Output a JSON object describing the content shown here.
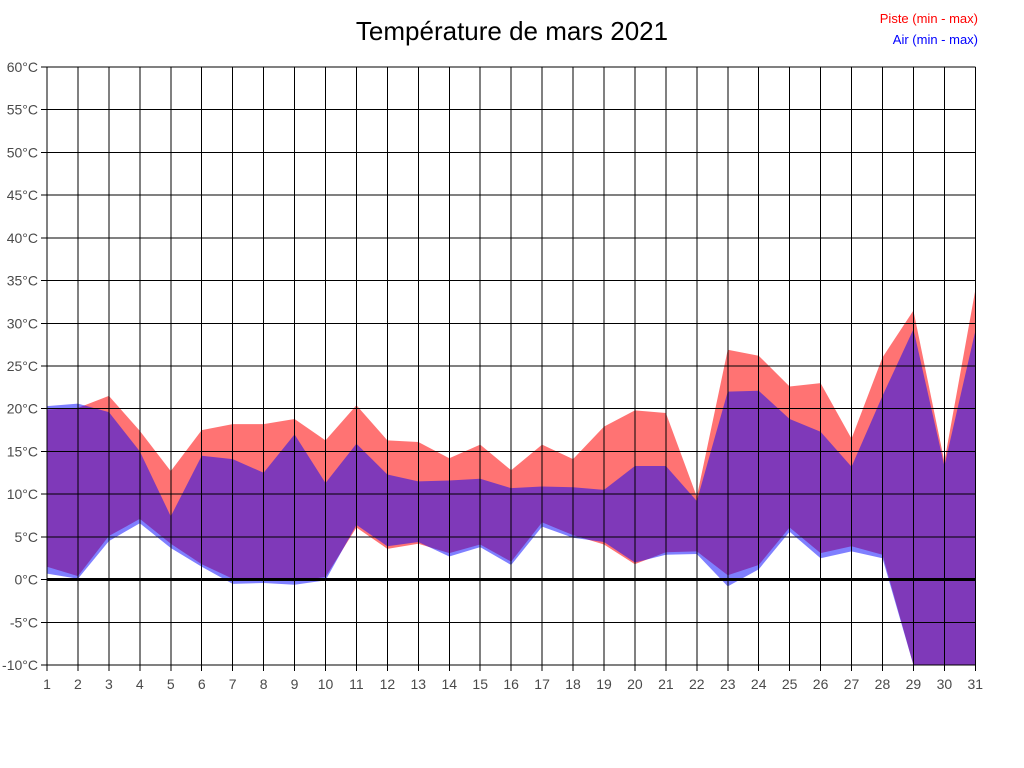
{
  "page": {
    "background": "#ffffff"
  },
  "legend": {
    "position": "top-right",
    "items": [
      {
        "label": "Piste (min - max)",
        "color": "#ff0000"
      },
      {
        "label": "Air (min - max)",
        "color": "#0000ff"
      }
    ]
  },
  "grid": {
    "line_color": "#000000",
    "zero_line_value": 0,
    "zero_line_width": 3
  },
  "chart_data": {
    "type": "area",
    "subtype": "min-max-bands",
    "title": "Température de mars 2021",
    "xlabel": "",
    "ylabel": "",
    "unit": "°C",
    "ylim": [
      -10,
      60
    ],
    "ytick_step": 5,
    "grid": "on",
    "legend_position": "top-right",
    "x": [
      1,
      2,
      3,
      4,
      5,
      6,
      7,
      8,
      9,
      10,
      11,
      12,
      13,
      14,
      15,
      16,
      17,
      18,
      19,
      20,
      21,
      22,
      23,
      24,
      25,
      26,
      27,
      28,
      29,
      30,
      31
    ],
    "xtick_labels": [
      "1",
      "2",
      "3",
      "4",
      "5",
      "6",
      "7",
      "8",
      "9",
      "10",
      "11",
      "12",
      "13",
      "14",
      "15",
      "16",
      "17",
      "18",
      "19",
      "20",
      "21",
      "22",
      "23",
      "24",
      "25",
      "26",
      "27",
      "28",
      "29",
      "30",
      "31"
    ],
    "ytick_labels_bottom_to_top": [
      "-10°C",
      "-5°C",
      "0°C",
      "5°C",
      "10°C",
      "15°C",
      "20°C",
      "25°C",
      "30°C",
      "35°C",
      "40°C",
      "45°C",
      "50°C",
      "55°C",
      "60°C"
    ],
    "series": [
      {
        "name": "Piste (min - max)",
        "data_name": "piste-band",
        "color": "#ff0000",
        "fill_alpha": 0.55,
        "max": [
          19.9,
          20.1,
          21.5,
          17.4,
          12.7,
          17.5,
          18.2,
          18.2,
          18.8,
          16.3,
          20.4,
          16.3,
          16.1,
          14.2,
          15.8,
          12.8,
          15.8,
          14.1,
          17.9,
          19.8,
          19.5,
          9.7,
          26.9,
          26.2,
          22.6,
          23.0,
          16.5,
          26.0,
          31.5,
          13.8,
          33.9
        ],
        "min": [
          1.5,
          0.4,
          5.1,
          7.1,
          4.2,
          1.8,
          0.1,
          0.0,
          -0.2,
          0.3,
          6.1,
          3.6,
          4.2,
          3.1,
          4.1,
          2.1,
          6.7,
          5.2,
          4.1,
          1.8,
          3.2,
          3.3,
          0.5,
          1.7,
          6.1,
          3.1,
          3.9,
          2.9,
          -10,
          -10,
          -10
        ]
      },
      {
        "name": "Air (min - max)",
        "data_name": "air-band",
        "color": "#0000ff",
        "fill_alpha": 0.5,
        "max": [
          20.3,
          20.6,
          19.6,
          15.0,
          7.4,
          14.5,
          14.1,
          12.5,
          17.0,
          11.3,
          15.9,
          12.3,
          11.5,
          11.6,
          11.8,
          10.7,
          10.9,
          10.8,
          10.5,
          13.3,
          13.3,
          9.2,
          22.0,
          22.1,
          18.8,
          17.3,
          13.2,
          21.5,
          29.3,
          13.3,
          29.1
        ],
        "min": [
          0.7,
          0.1,
          4.5,
          6.6,
          3.7,
          1.5,
          -0.5,
          -0.4,
          -0.6,
          -0.1,
          6.4,
          3.9,
          4.4,
          2.7,
          3.8,
          1.7,
          6.2,
          4.9,
          4.4,
          2.0,
          2.9,
          3.0,
          -0.8,
          1.2,
          5.6,
          2.5,
          3.3,
          2.5,
          -10,
          -10,
          -10
        ]
      }
    ]
  }
}
